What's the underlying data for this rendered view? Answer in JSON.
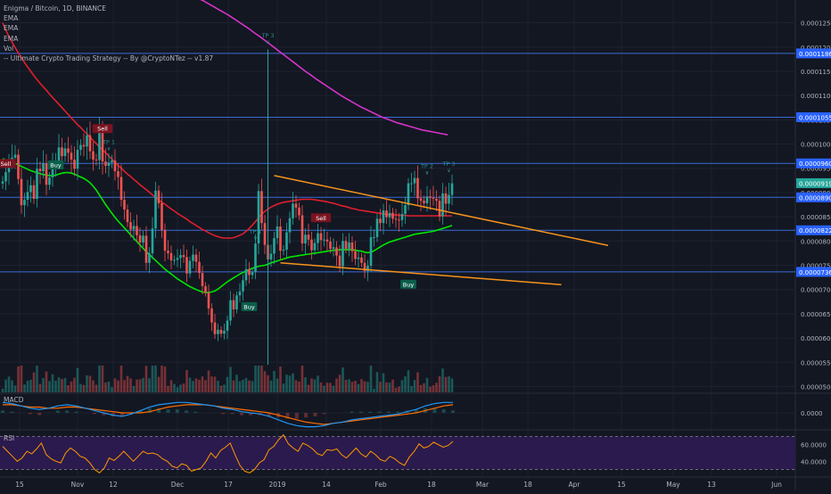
{
  "legend": {
    "symbol_line": "Enigma / Bitcoin, 1D, BINANCE",
    "ema_1": "EMA",
    "ema_2": "EMA",
    "ema_3": "EMA",
    "vol": "Vol",
    "strategy": "-- Ultimate Crypto Trading Strategy -- By @CryptoNTez -- v1.87"
  },
  "panes": {
    "macd": "MACD",
    "rsi": "RSI"
  },
  "colors": {
    "background": "#131722",
    "grid": "#1e2230",
    "up": "#26a69a",
    "down": "#ef5350",
    "ema_fast": "#00e600",
    "ema_mid": "#e01f2c",
    "ema_slow": "#d633c9",
    "trendline": "#f7931a",
    "hline": "#3a6bd6",
    "price_tag": "#2962ff",
    "last_price_tag": "#26a69a",
    "macd_line": "#2196f3",
    "signal_line": "#ff6d00",
    "rsi_line": "#ff9800",
    "rsi_band": "#2b1a4d"
  },
  "chart_data": [
    {
      "type": "candlestick",
      "title": "Enigma / Bitcoin, 1D, BINANCE",
      "x_ticks": [
        "15",
        "Nov",
        "12",
        "Dec",
        "17",
        "2019",
        "14",
        "Feb",
        "18",
        "Mar",
        "18",
        "Apr",
        "15",
        "May",
        "13",
        "Jun"
      ],
      "y_ticks": [
        "0.00012500",
        "0.00012000",
        "0.00011500",
        "0.00011000",
        "0.00010500",
        "0.00010000",
        "0.00009500",
        "0.00009000",
        "0.00008500",
        "0.00008000",
        "0.00007500",
        "0.00007000",
        "0.00006500",
        "0.00006000",
        "0.00005500",
        "0.00005000"
      ],
      "ylim": [
        4.88e-05,
        0.0001297
      ],
      "price_tags": [
        "0.00011869",
        "0.00010553",
        "0.00009601",
        "0.00009193",
        "0.00008901",
        "0.00008222",
        "0.00007364"
      ],
      "last_price": "0.00009193",
      "horizontal_levels": [
        0.00011869,
        0.00010553,
        9.601e-05,
        8.901e-05,
        8.222e-05,
        7.364e-05
      ],
      "candle_count": 145,
      "close": [
        9.23e-05,
        9.42e-05,
        9.64e-05,
        9.72e-05,
        9.78e-05,
        9.28e-05,
        8.74e-05,
        8.85e-05,
        9.01e-05,
        9.15e-05,
        8.87e-05,
        9.49e-05,
        9.44e-05,
        9.6e-05,
        9.16e-05,
        9.31e-05,
        9.59e-05,
        9.66e-05,
        9.93e-05,
        9.75e-05,
        9.91e-05,
        9.82e-05,
        9.68e-05,
        9.49e-05,
        9.88e-05,
        9.98e-05,
        9.95e-05,
        0.0001018,
        9.85e-05,
        9.68e-05,
        9.67e-05,
        0.0001031,
        9.64e-05,
        9.55e-05,
        9.62e-05,
        9.66e-05,
        9.44e-05,
        9.32e-05,
        8.85e-05,
        8.65e-05,
        8.39e-05,
        8.24e-05,
        8.31e-05,
        8.12e-05,
        7.97e-05,
        8.11e-05,
        7.55e-05,
        7.75e-05,
        8.26e-05,
        9.04e-05,
        8.78e-05,
        8.23e-05,
        7.8e-05,
        7.75e-05,
        7.6e-05,
        7.61e-05,
        7.65e-05,
        7.71e-05,
        7.67e-05,
        7.33e-05,
        7.59e-05,
        7.72e-05,
        7.57e-05,
        7.34e-05,
        7.07e-05,
        6.94e-05,
        6.61e-05,
        6.32e-05,
        6.08e-05,
        6.17e-05,
        6.09e-05,
        6.15e-05,
        6.36e-05,
        6.78e-05,
        6.59e-05,
        6.88e-05,
        6.96e-05,
        7.19e-05,
        7.42e-05,
        7.3e-05,
        7.36e-05,
        7.95e-05,
        9.03e-05,
        8.37e-05,
        7.92e-05,
        7.62e-05,
        7.74e-05,
        8.06e-05,
        8.3e-05,
        7.8e-05,
        7.82e-05,
        8.18e-05,
        8.47e-05,
        8.77e-05,
        8.69e-05,
        8.53e-05,
        7.95e-05,
        8.13e-05,
        8.03e-05,
        7.81e-05,
        7.96e-05,
        8.16e-05,
        8.02e-05,
        8.03e-05,
        7.99e-05,
        7.84e-05,
        7.87e-05,
        7.7e-05,
        7.48e-05,
        8e-05,
        7.84e-05,
        7.97e-05,
        7.79e-05,
        7.63e-05,
        7.66e-05,
        7.55e-05,
        7.38e-05,
        7.49e-05,
        8.08e-05,
        8.08e-05,
        8.46e-05,
        8.37e-05,
        8.63e-05,
        8.49e-05,
        8.58e-05,
        8.46e-05,
        8.44e-05,
        8.43e-05,
        8.56e-05,
        8.74e-05,
        9.19e-05,
        9.19e-05,
        9.3e-05,
        8.88e-05,
        8.83e-05,
        8.78e-05,
        8.92e-05,
        8.89e-05,
        8.87e-05,
        8.83e-05,
        8.51e-05,
        8.98e-05,
        8.77e-05,
        8.95e-05,
        9.19e-05
      ],
      "ema_fast": [
        9.7e-05,
        9.67e-05,
        9.65e-05,
        9.62e-05,
        9.6e-05,
        9.57e-05,
        9.54e-05,
        9.51e-05,
        9.48e-05,
        9.45e-05,
        9.43e-05,
        9.41e-05,
        9.39e-05,
        9.37e-05,
        9.36e-05,
        9.35e-05,
        9.35e-05,
        9.36e-05,
        9.38e-05,
        9.4e-05,
        9.41e-05,
        9.41e-05,
        9.4e-05,
        9.38e-05,
        9.35e-05,
        9.32e-05,
        9.29e-05,
        9.25e-05,
        9.2e-05,
        9.13e-05,
        9.05e-05,
        8.95e-05,
        8.85e-05,
        8.75e-05,
        8.66e-05,
        8.57e-05,
        8.49e-05,
        8.41e-05,
        8.34e-05,
        8.27e-05,
        8.2e-05,
        8.13e-05,
        8.06e-05,
        7.99e-05,
        7.92e-05,
        7.85e-05,
        7.78e-05,
        7.72e-05,
        7.66e-05,
        7.6e-05,
        7.54e-05,
        7.48e-05,
        7.42e-05,
        7.37e-05,
        7.32e-05,
        7.27e-05,
        7.22e-05,
        7.18e-05,
        7.14e-05,
        7.1e-05,
        7.06e-05,
        7.03e-05,
        7e-05,
        6.97e-05,
        6.95e-05,
        6.94e-05,
        6.94e-05,
        6.95e-05,
        6.97e-05,
        7.01e-05,
        7.06e-05,
        7.11e-05,
        7.16e-05,
        7.2e-05,
        7.24e-05,
        7.28e-05,
        7.32e-05,
        7.35e-05,
        7.38e-05,
        7.41e-05,
        7.44e-05,
        7.46e-05,
        7.48e-05,
        7.49e-05,
        7.5e-05,
        7.52e-05,
        7.55e-05,
        7.57e-05,
        7.59e-05,
        7.61e-05,
        7.63e-05,
        7.65e-05,
        7.67e-05,
        7.68e-05,
        7.69e-05,
        7.7e-05,
        7.71e-05,
        7.72e-05,
        7.73e-05,
        7.74e-05,
        7.75e-05,
        7.76e-05,
        7.77e-05,
        7.78e-05,
        7.79e-05,
        7.8e-05,
        7.81e-05,
        7.81e-05,
        7.82e-05,
        7.82e-05,
        7.82e-05,
        7.82e-05,
        7.82e-05,
        7.81e-05,
        7.8e-05,
        7.79e-05,
        7.77e-05,
        7.76e-05,
        7.77e-05,
        7.8e-05,
        7.84e-05,
        7.88e-05,
        7.92e-05,
        7.95e-05,
        7.98e-05,
        8e-05,
        8.02e-05,
        8.04e-05,
        8.06e-05,
        8.08e-05,
        8.1e-05,
        8.12e-05,
        8.14e-05,
        8.15e-05,
        8.16e-05,
        8.17e-05,
        8.18e-05,
        8.19e-05,
        8.2e-05,
        8.22e-05,
        8.24e-05,
        8.26e-05,
        8.28e-05,
        8.3e-05,
        8.32e-05
      ],
      "ema_mid": [
        0.000125,
        0.0001235,
        0.0001222,
        0.000121,
        0.0001199,
        0.0001188,
        0.0001178,
        0.0001168,
        0.0001159,
        0.000115,
        0.0001141,
        0.0001133,
        0.0001125,
        0.0001118,
        0.0001111,
        0.0001103,
        0.0001096,
        0.0001089,
        0.0001082,
        0.0001075,
        0.0001068,
        0.0001061,
        0.0001054,
        0.0001047,
        0.000104,
        0.0001034,
        0.0001027,
        0.0001021,
        0.0001014,
        0.0001007,
        0.0001001,
        9.94e-05,
        9.88e-05,
        9.82e-05,
        9.75e-05,
        9.69e-05,
        9.63e-05,
        9.56e-05,
        9.5e-05,
        9.44e-05,
        9.38e-05,
        9.33e-05,
        9.27e-05,
        9.22e-05,
        9.16e-05,
        9.11e-05,
        9.06e-05,
        9.01e-05,
        8.95e-05,
        8.9e-05,
        8.85e-05,
        8.8e-05,
        8.76e-05,
        8.71e-05,
        8.66e-05,
        8.62e-05,
        8.57e-05,
        8.53e-05,
        8.49e-05,
        8.45e-05,
        8.4e-05,
        8.36e-05,
        8.32e-05,
        8.28e-05,
        8.24e-05,
        8.21e-05,
        8.17e-05,
        8.14e-05,
        8.11e-05,
        8.09e-05,
        8.07e-05,
        8.06e-05,
        8.06e-05,
        8.06e-05,
        8.07e-05,
        8.09e-05,
        8.12e-05,
        8.15e-05,
        8.2e-05,
        8.26e-05,
        8.33e-05,
        8.4e-05,
        8.48e-05,
        8.55e-05,
        8.61e-05,
        8.66e-05,
        8.7e-05,
        8.73e-05,
        8.76e-05,
        8.78e-05,
        8.8e-05,
        8.81e-05,
        8.82e-05,
        8.83e-05,
        8.84e-05,
        8.85e-05,
        8.86e-05,
        8.86e-05,
        8.86e-05,
        8.86e-05,
        8.85e-05,
        8.84e-05,
        8.83e-05,
        8.82e-05,
        8.81e-05,
        8.79e-05,
        8.78e-05,
        8.76e-05,
        8.74e-05,
        8.72e-05,
        8.71e-05,
        8.69e-05,
        8.67e-05,
        8.66e-05,
        8.64e-05,
        8.63e-05,
        8.62e-05,
        8.61e-05,
        8.6e-05,
        8.59e-05,
        8.58e-05,
        8.57e-05,
        8.56e-05,
        8.55e-05,
        8.55e-05,
        8.54e-05,
        8.54e-05,
        8.53e-05,
        8.53e-05,
        8.53e-05,
        8.52e-05,
        8.52e-05,
        8.52e-05,
        8.52e-05,
        8.52e-05,
        8.52e-05,
        8.52e-05,
        8.52e-05,
        8.52e-05,
        8.52e-05,
        8.52e-05,
        8.52e-05,
        8.52e-05,
        8.52e-05,
        8.52e-05
      ],
      "ema_slow": [
        0.000132,
        0.0001315,
        0.000131,
        0.0001305,
        0.00013,
        0.0001295,
        0.0001289,
        0.0001283,
        0.0001277,
        0.0001271,
        0.0001265,
        0.0001258,
        0.0001251,
        0.0001244,
        0.0001237,
        0.0001229,
        0.0001222,
        0.0001214,
        0.0001206,
        0.0001198,
        0.000119,
        0.0001182,
        0.0001174,
        0.0001166,
        0.0001158,
        0.000115,
        0.0001143,
        0.0001135,
        0.0001128,
        0.0001121,
        0.0001114,
        0.0001107,
        0.00011,
        0.0001094,
        0.0001088,
        0.0001082,
        0.0001076,
        0.0001071,
        0.0001066,
        0.0001061,
        0.0001056,
        0.0001052,
        0.0001048,
        0.0001044,
        0.0001041,
        0.0001038,
        0.0001035,
        0.0001032,
        0.0001029,
        0.0001027,
        0.0001025,
        0.0001023,
        0.0001021,
        0.0001019
      ],
      "trendline_upper": {
        "from": [
          9.35e-05,
          87
        ],
        "to": [
          7.91e-05,
          194
        ]
      },
      "trendline_lower": {
        "from": [
          7.55e-05,
          89
        ],
        "to": [
          7.1e-05,
          179
        ]
      },
      "signals": [
        {
          "text": "Sell",
          "index": 1,
          "price": 9.58e-05,
          "kind": "sell"
        },
        {
          "text": "Sell",
          "index": 32,
          "price": 0.000103,
          "kind": "sell"
        },
        {
          "text": "Buy",
          "index": 17,
          "price": 9.55e-05,
          "kind": "buy"
        },
        {
          "text": "Buy",
          "index": 79,
          "price": 6.63e-05,
          "kind": "buy"
        },
        {
          "text": "Sell",
          "index": 102,
          "price": 8.46e-05,
          "kind": "sell"
        },
        {
          "text": "Buy",
          "index": 130,
          "price": 7.09e-05,
          "kind": "buy"
        },
        {
          "text": "TP 1",
          "index": 34,
          "price": 0.0001,
          "kind": "tp"
        },
        {
          "text": "TP 1",
          "index": 81,
          "price": 8.15e-05,
          "kind": "tp"
        },
        {
          "text": "TP 3",
          "index": 85,
          "price": 0.000122,
          "kind": "tp"
        },
        {
          "text": "TP 2",
          "index": 136,
          "price": 9.5e-05,
          "kind": "tp"
        },
        {
          "text": "TP 3",
          "index": 143,
          "price": 9.55e-05,
          "kind": "tp"
        }
      ]
    },
    {
      "type": "line",
      "title": "MACD",
      "y_ticks": [
        "0.0000"
      ],
      "series": [
        {
          "name": "MACD",
          "values": [
            0.9,
            0.8,
            0.6,
            0.4,
            0.3,
            0.4,
            0.6,
            0.7,
            0.6,
            0.4,
            0.2,
            0.0,
            -0.2,
            -0.3,
            -0.1,
            0.2,
            0.5,
            0.7,
            0.8,
            0.9,
            0.9,
            0.8,
            0.7,
            0.6,
            0.4,
            0.3,
            0.1,
            0.0,
            -0.1,
            -0.3,
            -0.6,
            -0.9,
            -1.1,
            -1.2,
            -1.2,
            -1.1,
            -0.9,
            -0.8,
            -0.6,
            -0.5,
            -0.4,
            -0.3,
            -0.2,
            -0.1,
            0.1,
            0.3,
            0.6,
            0.8,
            0.9,
            0.9
          ]
        },
        {
          "name": "Signal",
          "values": [
            0.7,
            0.7,
            0.6,
            0.5,
            0.5,
            0.4,
            0.4,
            0.5,
            0.5,
            0.4,
            0.3,
            0.2,
            0.1,
            0.0,
            0.0,
            0.0,
            0.1,
            0.3,
            0.5,
            0.6,
            0.7,
            0.7,
            0.7,
            0.6,
            0.5,
            0.4,
            0.3,
            0.2,
            0.1,
            0.0,
            -0.2,
            -0.4,
            -0.6,
            -0.8,
            -0.9,
            -1.0,
            -0.9,
            -0.8,
            -0.7,
            -0.6,
            -0.5,
            -0.4,
            -0.3,
            -0.2,
            -0.1,
            0.0,
            0.2,
            0.4,
            0.6,
            0.7
          ]
        }
      ]
    },
    {
      "type": "line",
      "title": "RSI",
      "y_ticks": [
        "60.0000",
        "40.0000"
      ],
      "ylim": [
        22,
        78
      ],
      "bands": [
        70,
        30
      ],
      "values": [
        58,
        52,
        46,
        40,
        44,
        52,
        49,
        55,
        62,
        48,
        43,
        40,
        38,
        50,
        56,
        52,
        46,
        44,
        38,
        30,
        26,
        32,
        44,
        41,
        46,
        52,
        46,
        40,
        46,
        52,
        49,
        50,
        48,
        43,
        40,
        34,
        32,
        37,
        35,
        28,
        30,
        32,
        40,
        50,
        44,
        53,
        57,
        62,
        48,
        35,
        28,
        26,
        30,
        38,
        42,
        54,
        58,
        66,
        72,
        61,
        56,
        52,
        62,
        59,
        55,
        49,
        47,
        54,
        53,
        55,
        48,
        44,
        50,
        56,
        49,
        45,
        52,
        48,
        42,
        40,
        46,
        43,
        38,
        35,
        45,
        52,
        61,
        56,
        58,
        63,
        60,
        57,
        59,
        64
      ]
    }
  ]
}
